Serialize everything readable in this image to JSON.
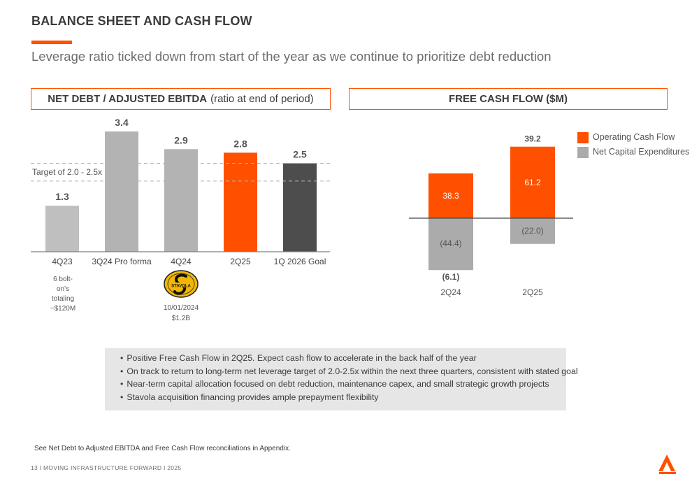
{
  "page": {
    "title": "BALANCE SHEET AND CASH FLOW",
    "subtitle": "Leverage ratio ticked down from start of the year as we continue to prioritize debt reduction",
    "footnote": "See Net Debt to Adjusted EBITDA and Free Cash Flow reconciliations in Appendix.",
    "footer": "13  I   MOVING INFRASTRUCTURE FORWARD   I   2025"
  },
  "colors": {
    "accent": "#ff5000",
    "light_gray": "#b3b3b3",
    "mid_gray": "#ababab",
    "dark_gray": "#4d4d4d"
  },
  "leverage_panel": {
    "header_bold": "NET DEBT / ADJUSTED EBITDA",
    "header_rest": "(ratio at end of period)",
    "target_label": "Target of 2.0 - 2.5x",
    "annotations": {
      "q423_note": [
        "6 bolt-",
        "on’s",
        "totaling",
        "~$120M"
      ],
      "stavola_logo_text": "STAVOLA",
      "stavola_note": [
        "10/01/2024",
        "$1.2B"
      ]
    }
  },
  "fcf_panel": {
    "header": "FREE CASH FLOW ($M)",
    "legend": [
      "Operating Cash Flow",
      "Net Capital Expenditures"
    ]
  },
  "notes": [
    "Positive Free Cash Flow in 2Q25. Expect cash flow to accelerate in the back half of the year",
    "On track to return to long-term net leverage target of 2.0-2.5x  within the next three quarters, consistent with stated goal",
    "Near-term capital allocation focused on debt reduction, maintenance capex, and small strategic growth projects",
    "Stavola acquisition financing provides ample prepayment flexibility"
  ],
  "chart_data": [
    {
      "type": "bar",
      "title": "NET DEBT / ADJUSTED EBITDA (ratio at end of period)",
      "categories": [
        "4Q23",
        "3Q24 Pro forma",
        "4Q24",
        "2Q25",
        "1Q 2026 Goal"
      ],
      "values": [
        1.3,
        3.4,
        2.9,
        2.8,
        2.5
      ],
      "value_labels": [
        "1.3",
        "3.4",
        "2.9",
        "2.8",
        "2.5"
      ],
      "bar_colors": [
        "#bfbfbf",
        "#b3b3b3",
        "#b3b3b3",
        "#ff5000",
        "#4d4d4d"
      ],
      "target_band": [
        2.0,
        2.5
      ],
      "ylim": [
        0,
        3.4
      ],
      "grid": false
    },
    {
      "type": "bar",
      "title": "FREE CASH FLOW ($M)",
      "categories": [
        "2Q24",
        "2Q25"
      ],
      "series": [
        {
          "name": "Operating Cash Flow",
          "values": [
            38.3,
            61.2
          ],
          "labels": [
            "38.3",
            "61.2"
          ],
          "color": "#ff5000"
        },
        {
          "name": "Net Capital Expenditures",
          "values": [
            -44.4,
            -22.0
          ],
          "labels": [
            "(44.4)",
            "(22.0)"
          ],
          "color": "#ababab"
        }
      ],
      "totals": [
        -6.1,
        39.2
      ],
      "total_labels": [
        "(6.1)",
        "39.2"
      ],
      "legend_position": "top-right",
      "grid": false
    }
  ]
}
